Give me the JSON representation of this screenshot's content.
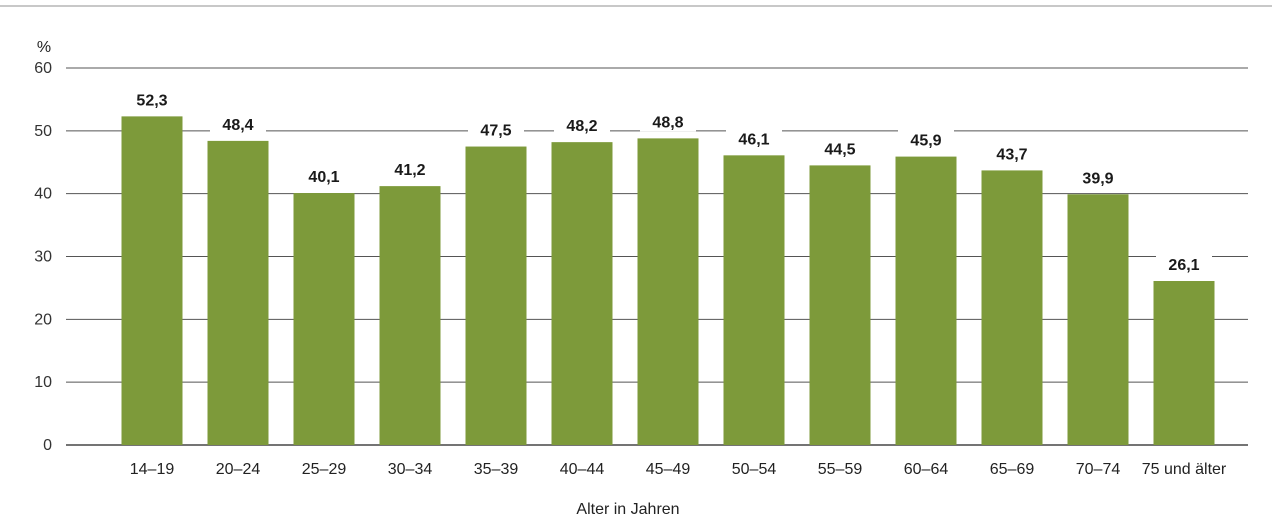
{
  "chart_data": {
    "type": "bar",
    "categories": [
      "14–19",
      "20–24",
      "25–29",
      "30–34",
      "35–39",
      "40–44",
      "45–49",
      "50–54",
      "55–59",
      "60–64",
      "65–69",
      "70–74",
      "75 und älter"
    ],
    "values": [
      52.3,
      48.4,
      40.1,
      41.2,
      47.5,
      48.2,
      48.8,
      46.1,
      44.5,
      45.9,
      43.7,
      39.9,
      26.1
    ],
    "value_labels": [
      "52,3",
      "48,4",
      "40,1",
      "41,2",
      "47,5",
      "48,2",
      "48,8",
      "46,1",
      "44,5",
      "45,9",
      "43,7",
      "39,9",
      "26,1"
    ],
    "xlabel": "Alter in Jahren",
    "ylabel": "%",
    "ylim": [
      0,
      60
    ],
    "yticks": [
      0,
      10,
      20,
      30,
      40,
      50,
      60
    ],
    "grid": true,
    "bar_color": "#7d9a3a"
  }
}
